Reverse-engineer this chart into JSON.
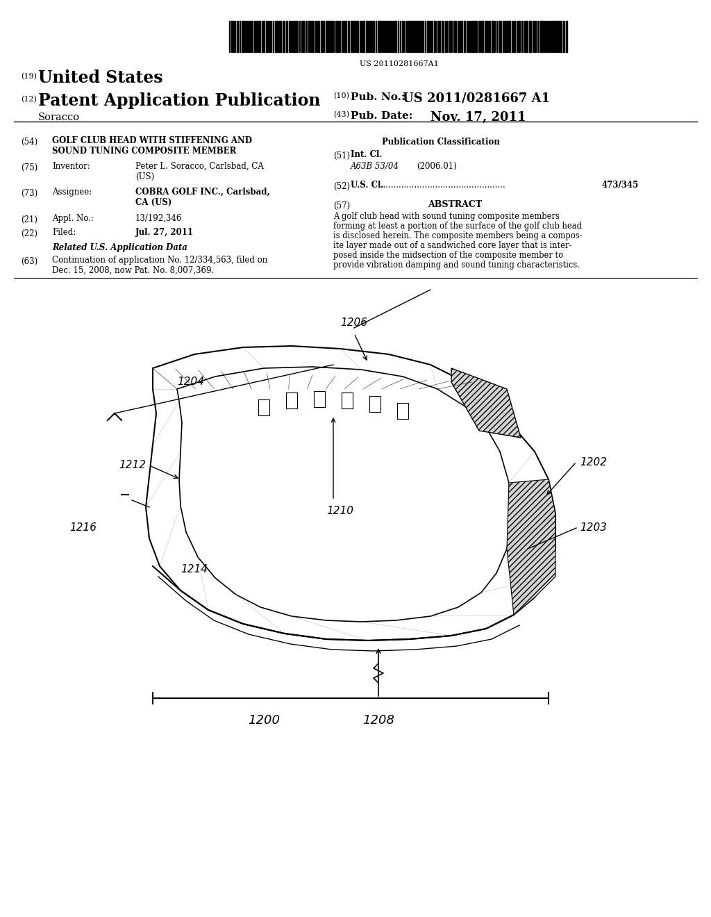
{
  "background_color": "#ffffff",
  "barcode_text": "US 20110281667A1",
  "number_19": "(19)",
  "united_states": "United States",
  "number_12": "(12)",
  "patent_app_pub": "Patent Application Publication",
  "number_10": "(10)",
  "pub_no_label": "Pub. No.:",
  "pub_no_value": "US 2011/0281667 A1",
  "inventor_name": "Soracco",
  "number_43": "(43)",
  "pub_date_label": "Pub. Date:",
  "pub_date_value": "Nov. 17, 2011",
  "number_54": "(54)",
  "title_line1": "GOLF CLUB HEAD WITH STIFFENING AND",
  "title_line2": "SOUND TUNING COMPOSITE MEMBER",
  "pub_class_label": "Publication Classification",
  "number_75": "(75)",
  "inventor_label": "Inventor:",
  "inventor_value": "Peter L. Soracco, Carlsbad, CA\n(US)",
  "number_51": "(51)",
  "int_cl_label": "Int. Cl.",
  "int_cl_value": "A63B 53/04",
  "int_cl_year": "(2006.01)",
  "number_73": "(73)",
  "assignee_label": "Assignee:",
  "assignee_value": "COBRA GOLF INC., Carlsbad,\nCA (US)",
  "number_52": "(52)",
  "us_cl_label": "U.S. Cl.",
  "us_cl_dots": "........................................................",
  "us_cl_value": "473/345",
  "number_21": "(21)",
  "appl_label": "Appl. No.:",
  "appl_value": "13/192,346",
  "number_22": "(22)",
  "filed_label": "Filed:",
  "filed_value": "Jul. 27, 2011",
  "number_57": "(57)",
  "abstract_label": "ABSTRACT",
  "abstract_text": "A golf club head with sound tuning composite members forming at least a portion of the surface of the golf club head is disclosed herein. The composite members being a composite layer made out of a sandwiched core layer that is interposed inside the midsection of the composite member to provide vibration damping and sound tuning characteristics.",
  "related_data_label": "Related U.S. Application Data",
  "number_63": "(63)",
  "related_text": "Continuation of application No. 12/334,563, filed on Dec. 15, 2008, now Pat. No. 8,007,369.",
  "label_1200": "1200",
  "label_1202": "1202",
  "label_1203": "1203",
  "label_1204": "1204",
  "label_1206": "1206",
  "label_1208": "1208",
  "label_1210": "1210",
  "label_1212": "1212",
  "label_1214": "1214",
  "label_1216": "1216"
}
